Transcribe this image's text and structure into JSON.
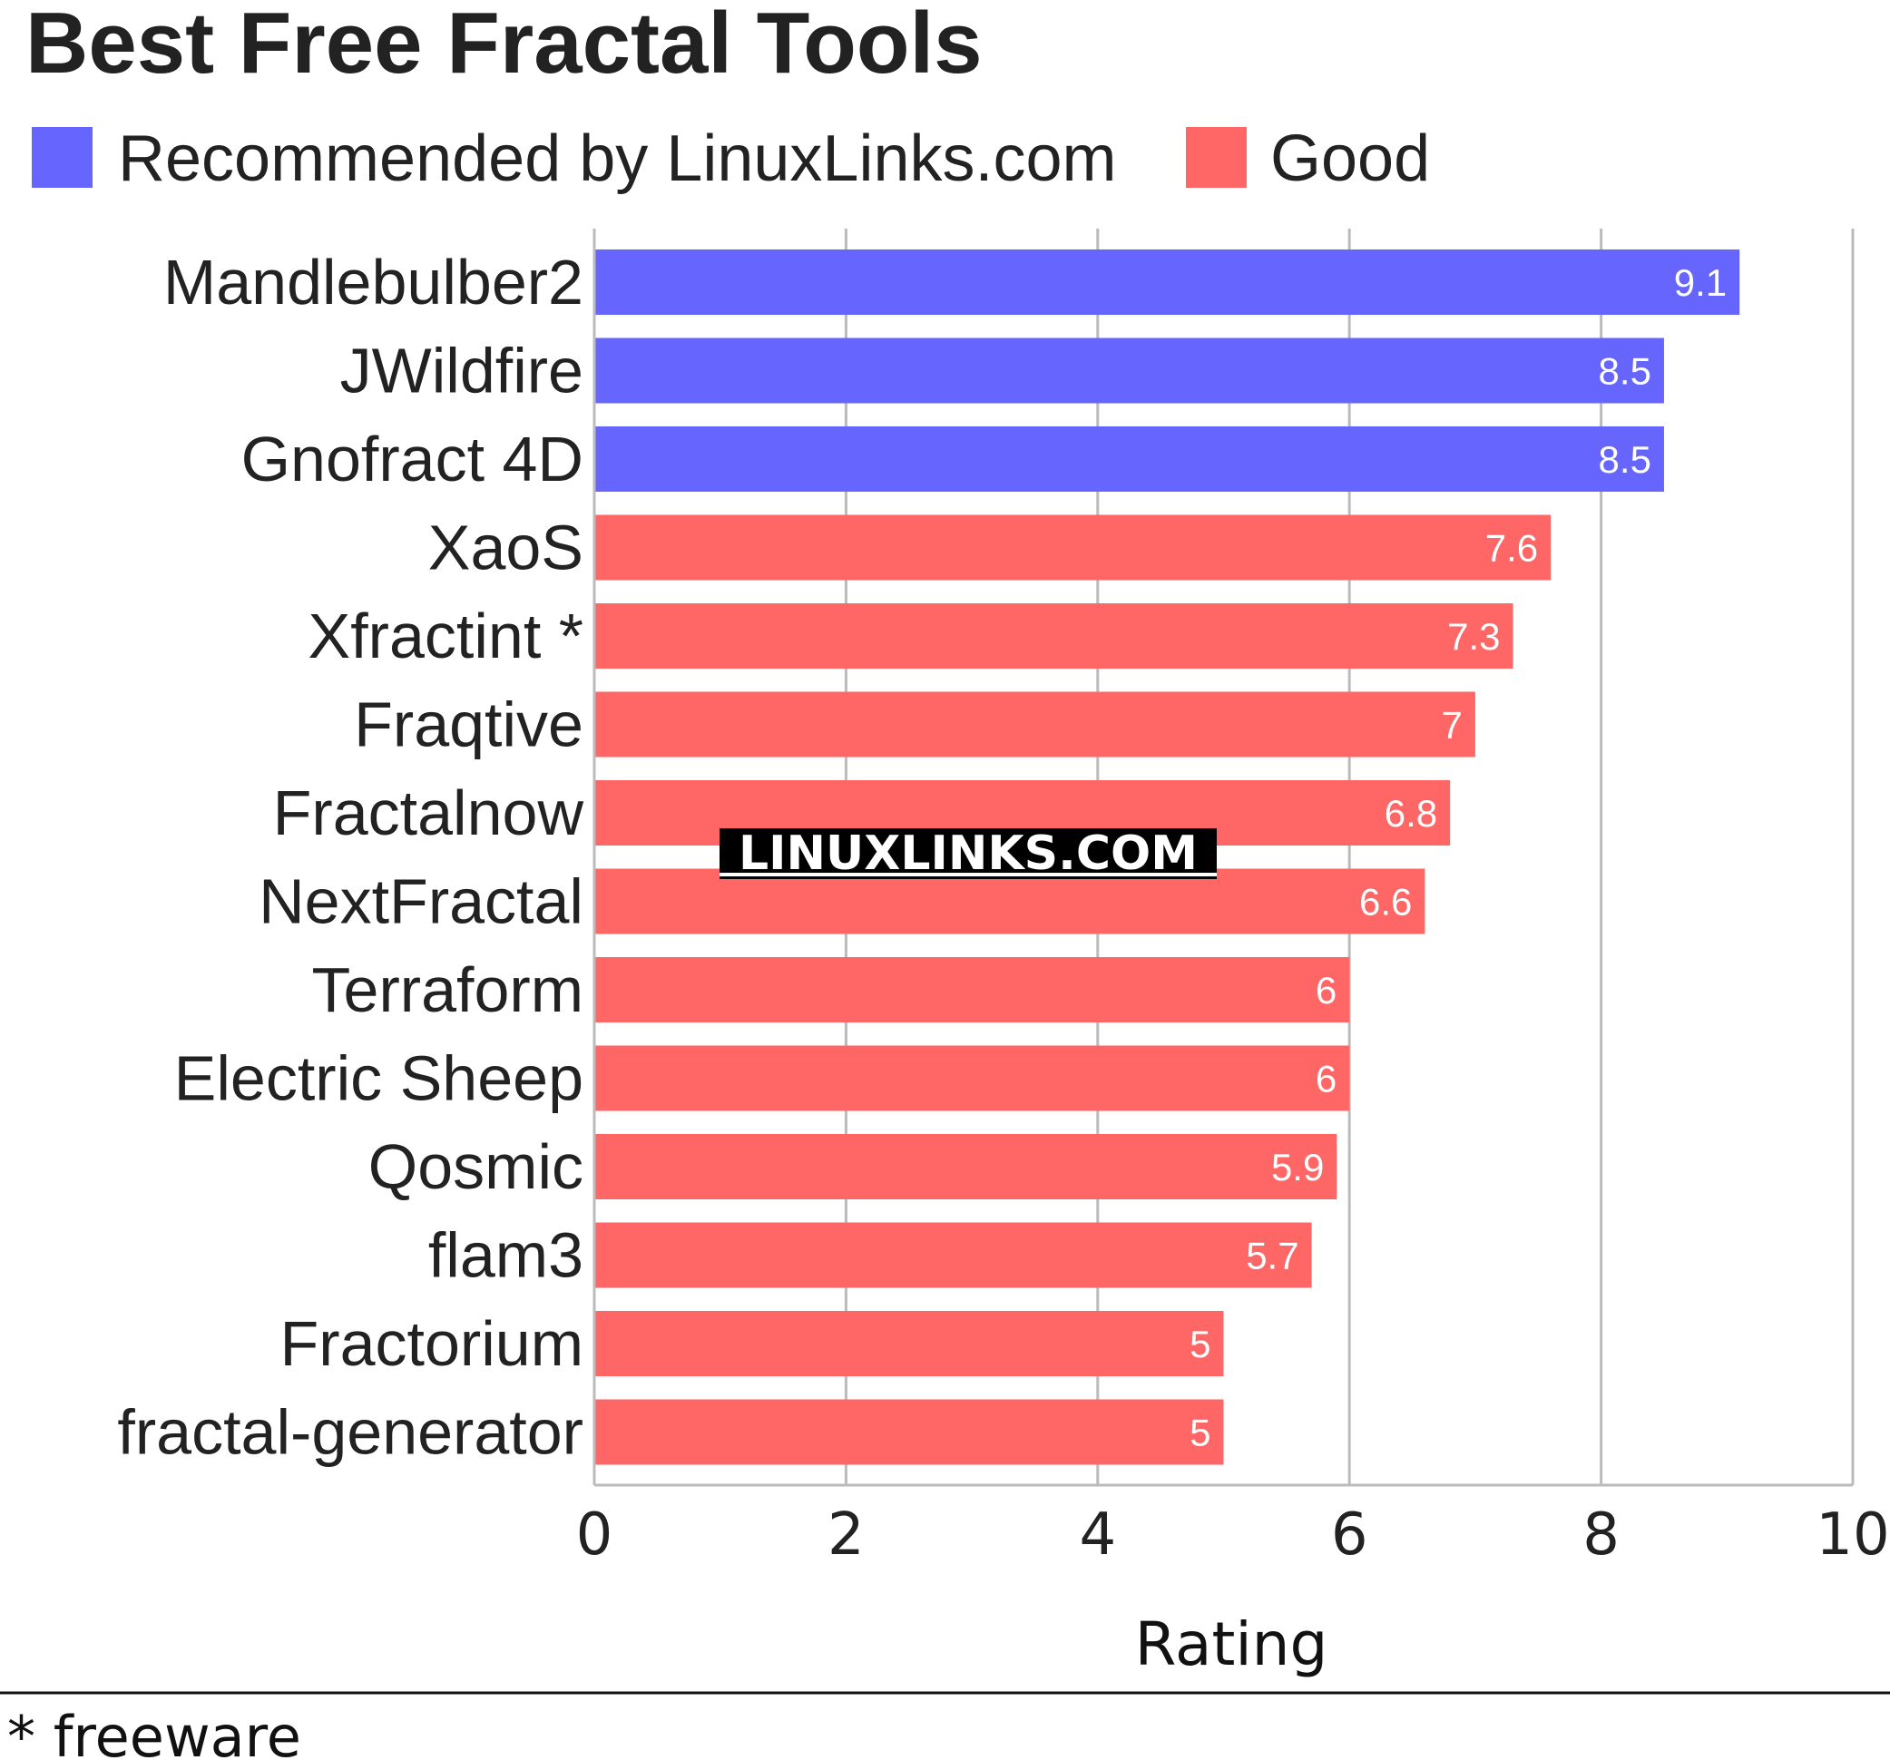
{
  "chart_data": {
    "type": "bar",
    "orientation": "horizontal",
    "title": "Best Free Fractal Tools",
    "xlabel": "Rating",
    "ylabel": "",
    "xlim": [
      0,
      10
    ],
    "xticks": [
      0,
      2,
      4,
      6,
      8,
      10
    ],
    "grid": true,
    "legend_placement": "top-left",
    "legend": [
      {
        "name": "Recommended by LinuxLinks.com",
        "color": "#6666ff"
      },
      {
        "name": "Good",
        "color": "#ff6666"
      }
    ],
    "categories": [
      "Mandlebulber2",
      "JWildfire",
      "Gnofract 4D",
      "XaoS",
      "Xfractint *",
      "Fraqtive",
      "Fractalnow",
      "NextFractal",
      "Terraform",
      "Electric Sheep",
      "Qosmic",
      "flam3",
      "Fractorium",
      "fractal-generator"
    ],
    "values": [
      9.1,
      8.5,
      8.5,
      7.6,
      7.3,
      7,
      6.8,
      6.6,
      6,
      6,
      5.9,
      5.7,
      5,
      5
    ],
    "value_labels": [
      "9.1",
      "8.5",
      "8.5",
      "7.6",
      "7.3",
      "7",
      "6.8",
      "6.6",
      "6",
      "6",
      "5.9",
      "5.7",
      "5",
      "5"
    ],
    "groups": [
      "Recommended by LinuxLinks.com",
      "Recommended by LinuxLinks.com",
      "Recommended by LinuxLinks.com",
      "Good",
      "Good",
      "Good",
      "Good",
      "Good",
      "Good",
      "Good",
      "Good",
      "Good",
      "Good",
      "Good"
    ],
    "footnote": "* freeware",
    "watermark": "LINUXLINKS.COM"
  }
}
